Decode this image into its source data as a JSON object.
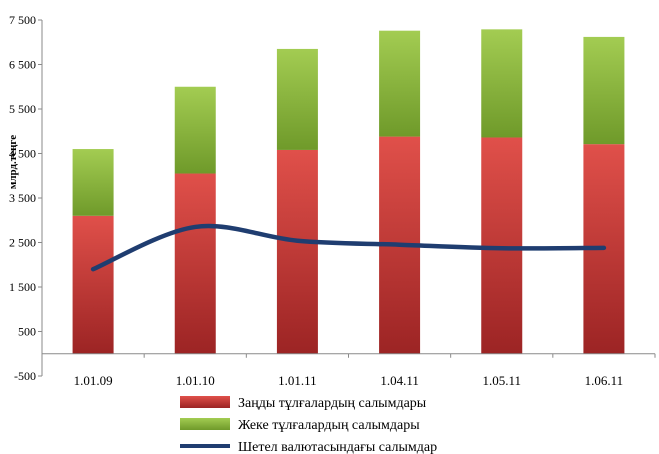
{
  "chart_data": {
    "type": "bar",
    "stacked": true,
    "categories": [
      "1.01.09",
      "1.01.10",
      "1.01.11",
      "1.04.11",
      "1.05.11",
      "1.06.11"
    ],
    "series": [
      {
        "name": "Заңды тұлғалардың салымдары",
        "type": "bar",
        "color": "#c0302c",
        "values": [
          3100,
          4050,
          4580,
          4880,
          4860,
          4710
        ]
      },
      {
        "name": "Жеке тұлғалардың салымдары",
        "type": "bar",
        "color": "#8cb83a",
        "values": [
          1500,
          1950,
          2270,
          2380,
          2430,
          2410
        ]
      },
      {
        "name": "Шетел валютасындағы салымдар",
        "type": "line",
        "color": "#1f3d70",
        "values": [
          1900,
          2850,
          2540,
          2450,
          2370,
          2380
        ]
      }
    ],
    "ylabel": "млрд.теңге",
    "xlabel": "",
    "ylim": [
      -500,
      7500
    ],
    "yticks": [
      -500,
      500,
      1500,
      2500,
      3500,
      4500,
      5500,
      6500,
      7500
    ],
    "ytick_labels": [
      "-500",
      "500",
      "1 500",
      "2 500",
      "3 500",
      "4 500",
      "5 500",
      "6 500",
      "7 500"
    ],
    "grid": false,
    "legend_position": "bottom"
  }
}
